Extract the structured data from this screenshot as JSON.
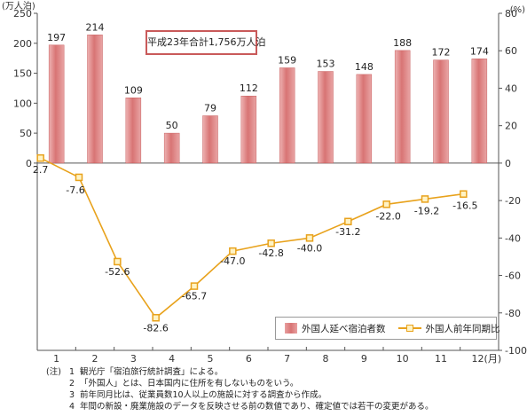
{
  "chart_data": {
    "type": "bar+line",
    "categories": [
      "1",
      "2",
      "3",
      "4",
      "5",
      "6",
      "7",
      "8",
      "9",
      "10",
      "11",
      "12"
    ],
    "x_unit": "(月)",
    "series": [
      {
        "name": "外国人延べ宿泊者数",
        "type": "bar",
        "axis": "left",
        "values": [
          197,
          214,
          109,
          50,
          79,
          112,
          159,
          153,
          148,
          188,
          172,
          174
        ],
        "labels": [
          "197",
          "214",
          "109",
          "50",
          "79",
          "112",
          "159",
          "153",
          "148",
          "188",
          "172",
          "174"
        ]
      },
      {
        "name": "外国人前年同期比",
        "type": "line",
        "axis": "right",
        "values": [
          2.7,
          -7.6,
          -52.6,
          -82.6,
          -65.7,
          -47.0,
          -42.8,
          -40.0,
          -31.2,
          -22.0,
          -19.2,
          -16.5
        ],
        "labels": [
          "2.7",
          "-7.6",
          "-52.6",
          "-82.6",
          "-65.7",
          "-47.0",
          "-42.8",
          "-40.0",
          "-31.2",
          "-22.0",
          "-19.2",
          "-16.5"
        ]
      }
    ],
    "y_left": {
      "unit": "(万人泊)",
      "ylim": [
        0,
        250
      ],
      "ticks": [
        0,
        50,
        100,
        150,
        200,
        250
      ],
      "tick_labels": [
        "0",
        "50",
        "100",
        "150",
        "200",
        "250"
      ]
    },
    "y_right": {
      "unit": "(%)",
      "ylim": [
        -100,
        80
      ],
      "ticks": [
        -100,
        -80,
        -60,
        -40,
        -20,
        0,
        20,
        40,
        60,
        80
      ],
      "tick_labels": [
        "-100",
        "-80",
        "-60",
        "-40",
        "-20",
        "0",
        "20",
        "40",
        "60",
        "80"
      ]
    },
    "annotation": "平成23年合計1,756万人泊",
    "grid": false,
    "legend_position": "bottom-right",
    "colors": {
      "bar": "#d87474",
      "bar_light": "#eeb3b3",
      "line": "#e8a21c",
      "marker_fill": "#fff3c4",
      "annotation_border": "#c95a5a"
    }
  },
  "notes": {
    "prefix": "(注)",
    "items": [
      {
        "num": "1",
        "text": "観光庁「宿泊旅行統計調査」による。"
      },
      {
        "num": "2",
        "text": "「外国人」とは、日本国内に住所を有しないものをいう。"
      },
      {
        "num": "3",
        "text": "前年同月比は、従業員数10人以上の施設に対する調査から作成。"
      },
      {
        "num": "4",
        "text": "年間の新設・廃業施設のデータを反映させる前の数値であり、確定値では若干の変更がある。"
      }
    ]
  }
}
